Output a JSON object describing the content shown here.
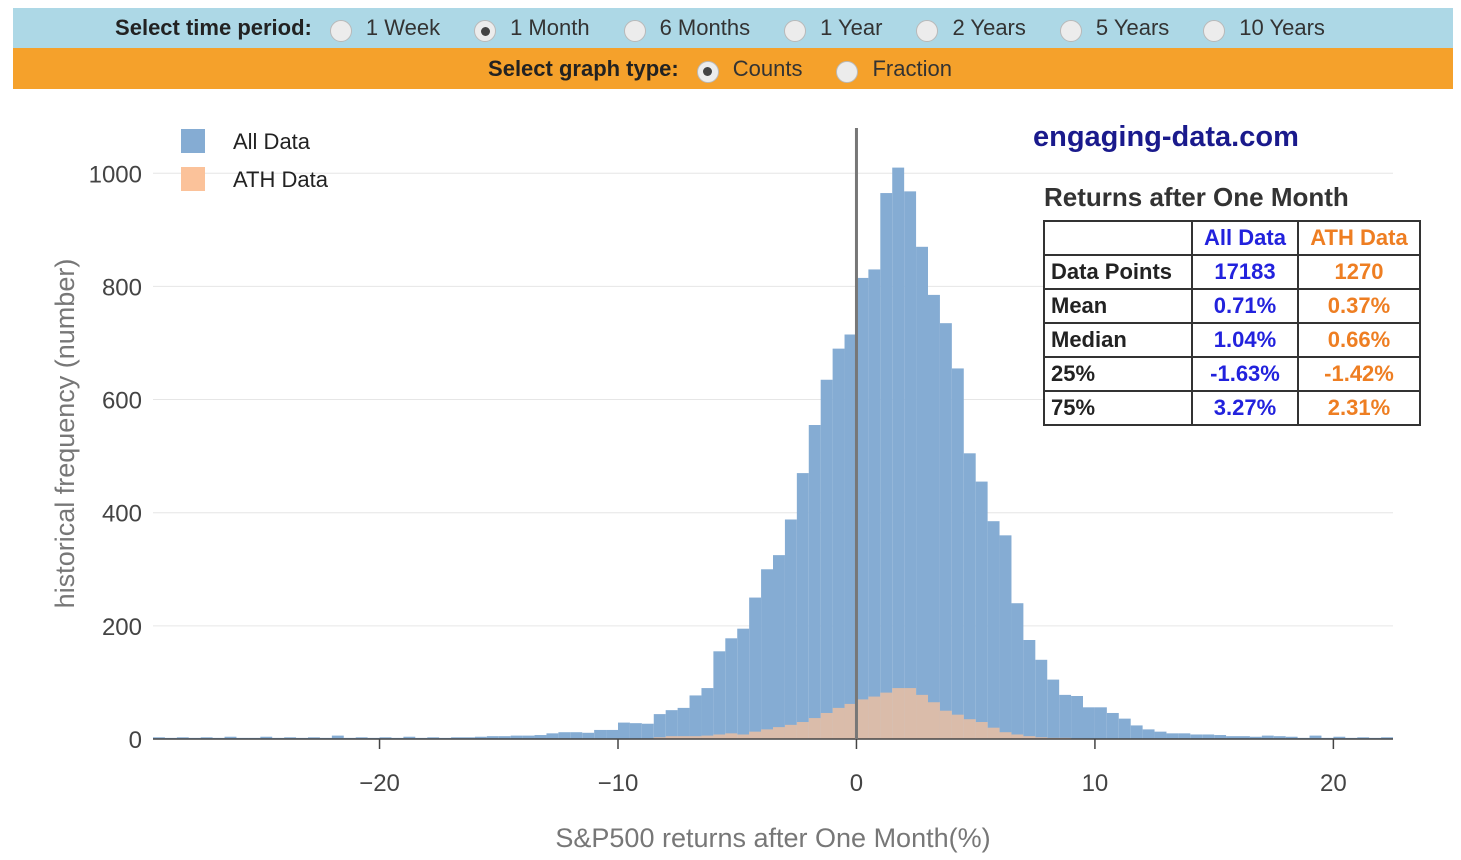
{
  "controls": {
    "period_label": "Select time period:",
    "periods": [
      {
        "label": "1 Week",
        "selected": false
      },
      {
        "label": "1 Month",
        "selected": true
      },
      {
        "label": "6 Months",
        "selected": false
      },
      {
        "label": "1 Year",
        "selected": false
      },
      {
        "label": "2 Years",
        "selected": false
      },
      {
        "label": "5 Years",
        "selected": false
      },
      {
        "label": "10 Years",
        "selected": false
      }
    ],
    "type_label": "Select graph type:",
    "types": [
      {
        "label": "Counts",
        "selected": true
      },
      {
        "label": "Fraction",
        "selected": false
      }
    ],
    "colors": {
      "period_bar": "#add8e6",
      "type_bar": "#f5a12b"
    }
  },
  "brand": "engaging-data.com",
  "stats": {
    "title": "Returns after One Month",
    "headers": [
      "",
      "All Data",
      "ATH Data"
    ],
    "rows": [
      [
        "Data Points",
        "17183",
        "1270"
      ],
      [
        "Mean",
        "0.71%",
        "0.37%"
      ],
      [
        "Median",
        "1.04%",
        "0.66%"
      ],
      [
        "25%",
        "-1.63%",
        "-1.42%"
      ],
      [
        "75%",
        "3.27%",
        "2.31%"
      ]
    ]
  },
  "chart_data": {
    "type": "bar",
    "subtype": "overlaid histogram",
    "title": "",
    "xlabel": "S&P500 returns after One Month(%)",
    "ylabel": "historical frequency (number)",
    "xlim": [
      -29.5,
      22.5
    ],
    "ylim": [
      0,
      1080
    ],
    "xticks": [
      -20,
      -10,
      0,
      10,
      20
    ],
    "xtick_labels": [
      "−20",
      "−10",
      "0",
      "10",
      "20"
    ],
    "yticks": [
      0,
      200,
      400,
      600,
      800,
      1000
    ],
    "ytick_labels": [
      "0",
      "200",
      "400",
      "600",
      "800",
      "1000"
    ],
    "grid": true,
    "legend_position": "top-left",
    "vertical_line_x": 0,
    "bin_width": 0.5,
    "series": [
      {
        "name": "All Data",
        "color": "#85acd3",
        "bins": [
          [
            -29.5,
            3
          ],
          [
            -29,
            2
          ],
          [
            -28.5,
            3
          ],
          [
            -28,
            2
          ],
          [
            -27.5,
            3
          ],
          [
            -27,
            2
          ],
          [
            -26.5,
            4
          ],
          [
            -26,
            2
          ],
          [
            -25.5,
            2
          ],
          [
            -25,
            4
          ],
          [
            -24.5,
            2
          ],
          [
            -24,
            3
          ],
          [
            -23.5,
            2
          ],
          [
            -23,
            3
          ],
          [
            -22.5,
            2
          ],
          [
            -22,
            6
          ],
          [
            -21.5,
            2
          ],
          [
            -21,
            3
          ],
          [
            -20.5,
            2
          ],
          [
            -20,
            3
          ],
          [
            -19.5,
            2
          ],
          [
            -19,
            4
          ],
          [
            -18.5,
            2
          ],
          [
            -18,
            3
          ],
          [
            -17.5,
            2
          ],
          [
            -17,
            3
          ],
          [
            -16.5,
            3
          ],
          [
            -16,
            4
          ],
          [
            -15.5,
            5
          ],
          [
            -15,
            5
          ],
          [
            -14.5,
            6
          ],
          [
            -14,
            6
          ],
          [
            -13.5,
            7
          ],
          [
            -13,
            10
          ],
          [
            -12.5,
            12
          ],
          [
            -12,
            12
          ],
          [
            -11.5,
            11
          ],
          [
            -11,
            16
          ],
          [
            -10.5,
            16
          ],
          [
            -10,
            29
          ],
          [
            -9.5,
            28
          ],
          [
            -9,
            27
          ],
          [
            -8.5,
            44
          ],
          [
            -8,
            51
          ],
          [
            -7.5,
            55
          ],
          [
            -7,
            77
          ],
          [
            -6.5,
            90
          ],
          [
            -6,
            155
          ],
          [
            -5.5,
            178
          ],
          [
            -5,
            195
          ],
          [
            -4.5,
            250
          ],
          [
            -4,
            300
          ],
          [
            -3.5,
            325
          ],
          [
            -3,
            388
          ],
          [
            -2.5,
            470
          ],
          [
            -2,
            555
          ],
          [
            -1.5,
            635
          ],
          [
            -1,
            690
          ],
          [
            -0.5,
            715
          ],
          [
            0,
            815
          ],
          [
            0.5,
            830
          ],
          [
            1,
            965
          ],
          [
            1.5,
            1010
          ],
          [
            2,
            968
          ],
          [
            2.5,
            870
          ],
          [
            3,
            785
          ],
          [
            3.5,
            735
          ],
          [
            4,
            655
          ],
          [
            4.5,
            505
          ],
          [
            5,
            455
          ],
          [
            5.5,
            385
          ],
          [
            6,
            360
          ],
          [
            6.5,
            240
          ],
          [
            7,
            175
          ],
          [
            7.5,
            140
          ],
          [
            8,
            105
          ],
          [
            8.5,
            78
          ],
          [
            9,
            76
          ],
          [
            9.5,
            56
          ],
          [
            10,
            56
          ],
          [
            10.5,
            46
          ],
          [
            11,
            36
          ],
          [
            11.5,
            24
          ],
          [
            12,
            17
          ],
          [
            12.5,
            13
          ],
          [
            13,
            10
          ],
          [
            13.5,
            10
          ],
          [
            14,
            8
          ],
          [
            14.5,
            8
          ],
          [
            15,
            7
          ],
          [
            15.5,
            5
          ],
          [
            16,
            5
          ],
          [
            16.5,
            4
          ],
          [
            17,
            6
          ],
          [
            17.5,
            5
          ],
          [
            18,
            4
          ],
          [
            18.5,
            2
          ],
          [
            19,
            6
          ],
          [
            19.5,
            2
          ],
          [
            20,
            4
          ],
          [
            20.5,
            2
          ],
          [
            21,
            3
          ],
          [
            21.5,
            2
          ],
          [
            22,
            3
          ]
        ]
      },
      {
        "name": "ATH Data",
        "color": "#fbc29a",
        "bins": [
          [
            -9,
            1
          ],
          [
            -8.5,
            3
          ],
          [
            -8,
            5
          ],
          [
            -7.5,
            5
          ],
          [
            -7,
            5
          ],
          [
            -6.5,
            6
          ],
          [
            -6,
            8
          ],
          [
            -5.5,
            10
          ],
          [
            -5,
            8
          ],
          [
            -4.5,
            13
          ],
          [
            -4,
            17
          ],
          [
            -3.5,
            21
          ],
          [
            -3,
            25
          ],
          [
            -2.5,
            30
          ],
          [
            -2,
            37
          ],
          [
            -1.5,
            46
          ],
          [
            -1,
            55
          ],
          [
            -0.5,
            62
          ],
          [
            0,
            70
          ],
          [
            0.5,
            75
          ],
          [
            1,
            82
          ],
          [
            1.5,
            90
          ],
          [
            2,
            90
          ],
          [
            2.5,
            78
          ],
          [
            3,
            65
          ],
          [
            3.5,
            50
          ],
          [
            4,
            43
          ],
          [
            4.5,
            35
          ],
          [
            5,
            30
          ],
          [
            5.5,
            20
          ],
          [
            6,
            12
          ],
          [
            6.5,
            8
          ],
          [
            7,
            5
          ],
          [
            7.5,
            3
          ],
          [
            8,
            2
          ],
          [
            8.5,
            2
          ],
          [
            9,
            1
          ]
        ]
      }
    ]
  }
}
